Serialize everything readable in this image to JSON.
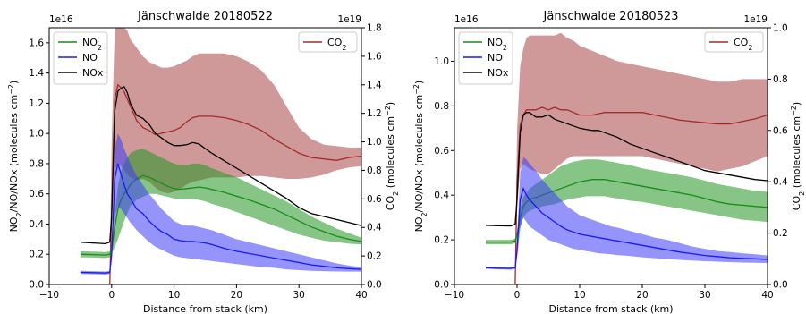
{
  "chart_data": [
    {
      "type": "line",
      "title": "Jänschwalde 20180522",
      "xlabel": "Distance from stack (km)",
      "ylabel_left": "NO2/NO/NOx (molecules cm-2)",
      "ylabel_right": "CO2 (molecules cm-2)",
      "left_multiplier": "1e16",
      "right_multiplier": "1e19",
      "xlim": [
        -10,
        40
      ],
      "ylim_left": [
        0,
        1.7
      ],
      "ylim_right": [
        0,
        1.8
      ],
      "x_ticks": [
        -10,
        0,
        10,
        20,
        30,
        40
      ],
      "y_ticks_left": [
        0.0,
        0.2,
        0.4,
        0.6,
        0.8,
        1.0,
        1.2,
        1.4,
        1.6
      ],
      "y_ticks_right": [
        0.0,
        0.2,
        0.4,
        0.6,
        0.8,
        1.0,
        1.2,
        1.4,
        1.6,
        1.8
      ],
      "legend_left": {
        "placement": "top-left",
        "entries": [
          "NO2",
          "NO",
          "NOx"
        ]
      },
      "legend_right": {
        "placement": "top-right",
        "entries": [
          "CO2"
        ]
      },
      "x": [
        -5,
        -3,
        -1,
        -0.3,
        0,
        0.5,
        1,
        1.5,
        2,
        2.5,
        3,
        4,
        5,
        6,
        7,
        8,
        9,
        10,
        11,
        12,
        13,
        14,
        15,
        16,
        18,
        20,
        22,
        24,
        26,
        28,
        30,
        32,
        34,
        36,
        38,
        40
      ],
      "series": [
        {
          "name": "NO2",
          "axis": "left",
          "color": "#1a8a1a",
          "values": [
            0.2,
            0.198,
            0.195,
            0.2,
            0.22,
            0.38,
            0.5,
            0.56,
            0.6,
            0.63,
            0.66,
            0.7,
            0.72,
            0.71,
            0.69,
            0.67,
            0.65,
            0.635,
            0.63,
            0.635,
            0.64,
            0.645,
            0.64,
            0.63,
            0.61,
            0.585,
            0.56,
            0.53,
            0.5,
            0.46,
            0.42,
            0.38,
            0.35,
            0.32,
            0.3,
            0.285
          ],
          "band_low": [
            0.18,
            0.178,
            0.175,
            0.18,
            0.2,
            0.25,
            0.3,
            0.36,
            0.42,
            0.47,
            0.52,
            0.56,
            0.58,
            0.6,
            0.6,
            0.59,
            0.58,
            0.57,
            0.565,
            0.565,
            0.565,
            0.56,
            0.55,
            0.535,
            0.51,
            0.48,
            0.45,
            0.42,
            0.39,
            0.36,
            0.33,
            0.31,
            0.29,
            0.28,
            0.27,
            0.265
          ],
          "band_high": [
            0.22,
            0.218,
            0.215,
            0.22,
            0.24,
            0.45,
            0.65,
            0.75,
            0.8,
            0.84,
            0.87,
            0.89,
            0.9,
            0.88,
            0.86,
            0.84,
            0.82,
            0.8,
            0.79,
            0.79,
            0.8,
            0.8,
            0.79,
            0.77,
            0.74,
            0.71,
            0.67,
            0.63,
            0.59,
            0.55,
            0.5,
            0.45,
            0.41,
            0.37,
            0.34,
            0.31
          ]
        },
        {
          "name": "NO",
          "axis": "left",
          "color": "#1a1aee",
          "values": [
            0.08,
            0.078,
            0.076,
            0.08,
            0.2,
            0.7,
            0.8,
            0.73,
            0.66,
            0.6,
            0.57,
            0.5,
            0.47,
            0.42,
            0.38,
            0.35,
            0.33,
            0.3,
            0.29,
            0.285,
            0.285,
            0.28,
            0.275,
            0.265,
            0.24,
            0.22,
            0.205,
            0.19,
            0.175,
            0.16,
            0.145,
            0.13,
            0.12,
            0.11,
            0.105,
            0.1
          ],
          "band_low": [
            0.07,
            0.068,
            0.066,
            0.07,
            0.15,
            0.45,
            0.52,
            0.5,
            0.47,
            0.44,
            0.41,
            0.36,
            0.32,
            0.28,
            0.25,
            0.23,
            0.21,
            0.19,
            0.18,
            0.175,
            0.17,
            0.165,
            0.16,
            0.155,
            0.145,
            0.135,
            0.125,
            0.115,
            0.11,
            0.1,
            0.095,
            0.09,
            0.088,
            0.086,
            0.085,
            0.085
          ],
          "band_high": [
            0.09,
            0.088,
            0.086,
            0.09,
            0.25,
            0.9,
            1.0,
            0.96,
            0.9,
            0.85,
            0.8,
            0.72,
            0.66,
            0.6,
            0.55,
            0.5,
            0.46,
            0.42,
            0.4,
            0.39,
            0.39,
            0.38,
            0.37,
            0.36,
            0.33,
            0.3,
            0.28,
            0.26,
            0.24,
            0.22,
            0.2,
            0.18,
            0.16,
            0.14,
            0.125,
            0.115
          ]
        },
        {
          "name": "NOx",
          "axis": "left",
          "color": "#000000",
          "values": [
            0.28,
            0.275,
            0.27,
            0.28,
            0.45,
            1.15,
            1.28,
            1.3,
            1.31,
            1.27,
            1.2,
            1.12,
            1.1,
            1.06,
            1.0,
            0.97,
            0.94,
            0.92,
            0.92,
            0.925,
            0.94,
            0.93,
            0.9,
            0.87,
            0.82,
            0.77,
            0.72,
            0.67,
            0.62,
            0.57,
            0.51,
            0.47,
            0.45,
            0.43,
            0.41,
            0.39
          ]
        },
        {
          "name": "CO2",
          "axis": "right",
          "color": "#a52a2a",
          "values": [
            null,
            null,
            null,
            0.0,
            0.5,
            1.3,
            1.4,
            1.38,
            1.35,
            1.3,
            1.25,
            1.15,
            1.1,
            1.08,
            1.05,
            1.06,
            1.07,
            1.08,
            1.1,
            1.14,
            1.17,
            1.18,
            1.18,
            1.18,
            1.17,
            1.15,
            1.12,
            1.08,
            1.02,
            0.97,
            0.92,
            0.89,
            0.88,
            0.87,
            0.89,
            0.9
          ],
          "band_low": [
            null,
            null,
            null,
            0.0,
            0.4,
            0.8,
            0.85,
            0.83,
            0.8,
            0.77,
            0.75,
            0.73,
            0.74,
            0.72,
            0.68,
            0.65,
            0.64,
            0.65,
            0.67,
            0.7,
            0.72,
            0.73,
            0.74,
            0.75,
            0.75,
            0.75,
            0.76,
            0.76,
            0.75,
            0.74,
            0.74,
            0.75,
            0.77,
            0.8,
            0.82,
            0.83
          ],
          "band_high": [
            null,
            null,
            null,
            0.1,
            1.0,
            1.8,
            1.8,
            1.8,
            1.8,
            1.78,
            1.72,
            1.66,
            1.6,
            1.56,
            1.54,
            1.52,
            1.52,
            1.53,
            1.55,
            1.57,
            1.6,
            1.62,
            1.62,
            1.62,
            1.62,
            1.6,
            1.56,
            1.5,
            1.4,
            1.25,
            1.1,
            1.02,
            0.98,
            0.97,
            0.96,
            0.96
          ]
        }
      ]
    },
    {
      "type": "line",
      "title": "Jänschwalde 20180523",
      "xlabel": "Distance from stack (km)",
      "ylabel_left": "NO2/NO/NOx (molecules cm-2)",
      "ylabel_right": "CO2 (molecules cm-2)",
      "left_multiplier": "1e16",
      "right_multiplier": "1e19",
      "xlim": [
        -10,
        40
      ],
      "ylim_left": [
        0,
        1.15
      ],
      "ylim_right": [
        0,
        1.0
      ],
      "x_ticks": [
        -10,
        0,
        10,
        20,
        30,
        40
      ],
      "y_ticks_left": [
        0.0,
        0.2,
        0.4,
        0.6,
        0.8,
        1.0
      ],
      "y_ticks_right": [
        0.0,
        0.2,
        0.4,
        0.6,
        0.8,
        1.0
      ],
      "legend_left": {
        "placement": "top-left",
        "entries": [
          "NO2",
          "NO",
          "NOx"
        ]
      },
      "legend_right": {
        "placement": "top-right",
        "entries": [
          "CO2"
        ]
      },
      "x": [
        -5,
        -3,
        -1,
        -0.3,
        0,
        0.5,
        1,
        1.5,
        2,
        3,
        4,
        5,
        6,
        7,
        8,
        9,
        10,
        11,
        12,
        13,
        14,
        15,
        16,
        18,
        20,
        22,
        24,
        26,
        28,
        30,
        32,
        34,
        36,
        38,
        40
      ],
      "series": [
        {
          "name": "NO2",
          "axis": "left",
          "color": "#1a8a1a",
          "values": [
            0.19,
            0.19,
            0.19,
            0.195,
            0.22,
            0.3,
            0.35,
            0.37,
            0.38,
            0.39,
            0.4,
            0.41,
            0.42,
            0.43,
            0.44,
            0.45,
            0.46,
            0.465,
            0.47,
            0.47,
            0.47,
            0.465,
            0.46,
            0.45,
            0.44,
            0.43,
            0.42,
            0.41,
            0.4,
            0.385,
            0.37,
            0.36,
            0.355,
            0.35,
            0.345
          ],
          "band_low": [
            0.18,
            0.18,
            0.18,
            0.185,
            0.2,
            0.26,
            0.3,
            0.32,
            0.33,
            0.34,
            0.35,
            0.355,
            0.36,
            0.37,
            0.38,
            0.385,
            0.39,
            0.395,
            0.395,
            0.395,
            0.395,
            0.39,
            0.385,
            0.375,
            0.37,
            0.36,
            0.35,
            0.34,
            0.33,
            0.32,
            0.31,
            0.3,
            0.29,
            0.285,
            0.28
          ],
          "band_high": [
            0.2,
            0.2,
            0.2,
            0.205,
            0.24,
            0.34,
            0.39,
            0.41,
            0.43,
            0.45,
            0.47,
            0.49,
            0.51,
            0.53,
            0.54,
            0.55,
            0.555,
            0.56,
            0.56,
            0.56,
            0.555,
            0.55,
            0.545,
            0.535,
            0.52,
            0.51,
            0.5,
            0.49,
            0.48,
            0.465,
            0.45,
            0.44,
            0.43,
            0.42,
            0.415
          ]
        },
        {
          "name": "NO",
          "axis": "left",
          "color": "#1a1aee",
          "values": [
            0.075,
            0.073,
            0.072,
            0.075,
            0.15,
            0.38,
            0.43,
            0.4,
            0.38,
            0.35,
            0.32,
            0.3,
            0.28,
            0.26,
            0.245,
            0.235,
            0.225,
            0.22,
            0.215,
            0.21,
            0.205,
            0.2,
            0.195,
            0.185,
            0.175,
            0.165,
            0.155,
            0.145,
            0.138,
            0.13,
            0.125,
            0.12,
            0.117,
            0.115,
            0.112
          ],
          "band_low": [
            0.07,
            0.068,
            0.066,
            0.07,
            0.12,
            0.25,
            0.3,
            0.28,
            0.26,
            0.24,
            0.22,
            0.2,
            0.19,
            0.18,
            0.17,
            0.16,
            0.155,
            0.15,
            0.145,
            0.14,
            0.138,
            0.135,
            0.132,
            0.128,
            0.122,
            0.118,
            0.114,
            0.11,
            0.107,
            0.104,
            0.102,
            0.1,
            0.098,
            0.097,
            0.096
          ],
          "band_high": [
            0.08,
            0.078,
            0.077,
            0.08,
            0.2,
            0.5,
            0.57,
            0.56,
            0.54,
            0.51,
            0.47,
            0.44,
            0.41,
            0.38,
            0.35,
            0.33,
            0.31,
            0.3,
            0.29,
            0.28,
            0.27,
            0.26,
            0.255,
            0.24,
            0.225,
            0.21,
            0.2,
            0.185,
            0.17,
            0.16,
            0.15,
            0.145,
            0.14,
            0.135,
            0.13
          ]
        },
        {
          "name": "NOx",
          "axis": "left",
          "color": "#000000",
          "values": [
            0.265,
            0.263,
            0.262,
            0.27,
            0.38,
            0.68,
            0.76,
            0.77,
            0.77,
            0.75,
            0.75,
            0.76,
            0.74,
            0.73,
            0.72,
            0.71,
            0.7,
            0.695,
            0.69,
            0.69,
            0.68,
            0.67,
            0.66,
            0.63,
            0.61,
            0.59,
            0.57,
            0.55,
            0.53,
            0.51,
            0.5,
            0.49,
            0.48,
            0.47,
            0.465
          ]
        },
        {
          "name": "CO2",
          "axis": "right",
          "color": "#a52a2a",
          "values": [
            null,
            null,
            null,
            0.0,
            0.4,
            0.62,
            0.66,
            0.68,
            0.68,
            0.68,
            0.69,
            0.68,
            0.69,
            0.68,
            0.68,
            0.67,
            0.66,
            0.66,
            0.66,
            0.665,
            0.67,
            0.67,
            0.67,
            0.67,
            0.67,
            0.66,
            0.65,
            0.64,
            0.635,
            0.63,
            0.625,
            0.625,
            0.635,
            0.645,
            0.66
          ],
          "band_low": [
            null,
            null,
            null,
            0.0,
            0.3,
            0.45,
            0.47,
            0.46,
            0.45,
            0.44,
            0.43,
            0.43,
            0.45,
            0.47,
            0.49,
            0.5,
            0.5,
            0.5,
            0.5,
            0.5,
            0.5,
            0.5,
            0.5,
            0.5,
            0.5,
            0.49,
            0.48,
            0.47,
            0.46,
            0.45,
            0.44,
            0.45,
            0.46,
            0.48,
            0.5
          ],
          "band_high": [
            null,
            null,
            null,
            0.05,
            0.6,
            0.85,
            0.92,
            0.96,
            0.97,
            0.97,
            0.97,
            0.97,
            0.97,
            0.98,
            0.96,
            0.95,
            0.93,
            0.92,
            0.91,
            0.9,
            0.89,
            0.88,
            0.87,
            0.86,
            0.85,
            0.84,
            0.83,
            0.82,
            0.81,
            0.8,
            0.79,
            0.79,
            0.8,
            0.8,
            0.8
          ]
        }
      ]
    }
  ]
}
